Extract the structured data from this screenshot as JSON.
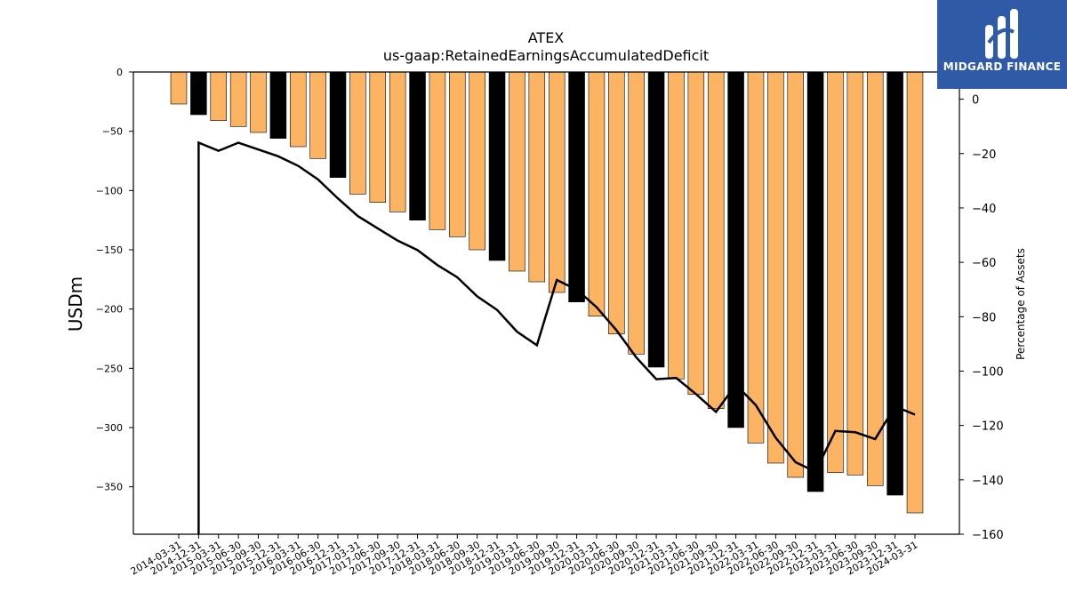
{
  "brand": {
    "name": "MIDGARD FINANCE",
    "accent": "#2f5aa8"
  },
  "chart_data": {
    "type": "bar",
    "title": "ATEX",
    "subtitle": "us-gaap:RetainedEarningsAccumulatedDeficit",
    "ylabel": "USDm",
    "y2label": "Percentage of Assets",
    "ylim": [
      -390,
      0
    ],
    "y2lim": [
      -160,
      10
    ],
    "yticks": [
      0,
      -50,
      -100,
      -150,
      -200,
      -250,
      -300,
      -350
    ],
    "y2ticks": [
      0,
      -20,
      -40,
      -60,
      -80,
      -100,
      -120,
      -140,
      -160
    ],
    "bar_colors": {
      "quarter": "#fdb462",
      "year_end": "#000000"
    },
    "line_color": "#000000",
    "categories": [
      "2014-03-31",
      "2014-12-31",
      "2015-03-31",
      "2015-06-30",
      "2015-09-30",
      "2015-12-31",
      "2016-03-31",
      "2016-06-30",
      "2016-12-31",
      "2017-03-31",
      "2017-06-30",
      "2017-09-30",
      "2017-12-31",
      "2018-03-31",
      "2018-06-30",
      "2018-09-30",
      "2018-12-31",
      "2019-03-31",
      "2019-06-30",
      "2019-09-30",
      "2019-12-31",
      "2020-03-31",
      "2020-06-30",
      "2020-09-30",
      "2020-12-31",
      "2021-03-31",
      "2021-06-30",
      "2021-09-30",
      "2021-12-31",
      "2022-03-31",
      "2022-06-30",
      "2022-09-30",
      "2022-12-31",
      "2023-03-31",
      "2023-06-30",
      "2023-09-30",
      "2023-12-31",
      "2024-03-31"
    ],
    "series": [
      {
        "values": [
          -27,
          -36,
          -41,
          -46,
          -51,
          -56,
          -63,
          -73,
          -89,
          -103,
          -110,
          -118,
          -125,
          -133,
          -139,
          -150,
          -159,
          -168,
          -177,
          -186,
          -194,
          -206,
          -221,
          -238,
          -249,
          -259,
          -272,
          -284,
          -300,
          -313,
          -330,
          -342,
          -354,
          -338,
          -340,
          -349,
          -357,
          -372
        ],
        "year_end": [
          false,
          true,
          false,
          false,
          false,
          true,
          false,
          false,
          true,
          false,
          false,
          false,
          true,
          false,
          false,
          false,
          true,
          false,
          false,
          false,
          true,
          false,
          false,
          false,
          true,
          false,
          false,
          false,
          true,
          false,
          false,
          false,
          true,
          false,
          false,
          false,
          true,
          false
        ]
      },
      {
        "type": "line",
        "values": [
          null,
          -16,
          -19,
          -16,
          -18.5,
          -21,
          -24.5,
          -29.5,
          -36.5,
          -43,
          -47.5,
          -52,
          -55.5,
          -61,
          -65.5,
          -72.5,
          -77.5,
          -85.5,
          -90.5,
          -66.5,
          -70,
          -76.5,
          -85,
          -95,
          -103,
          -102.5,
          -108.5,
          -115,
          -105,
          -112.5,
          -124.5,
          -133.5,
          -137,
          -122,
          -122.5,
          -125,
          -113,
          -116
        ]
      }
    ]
  }
}
